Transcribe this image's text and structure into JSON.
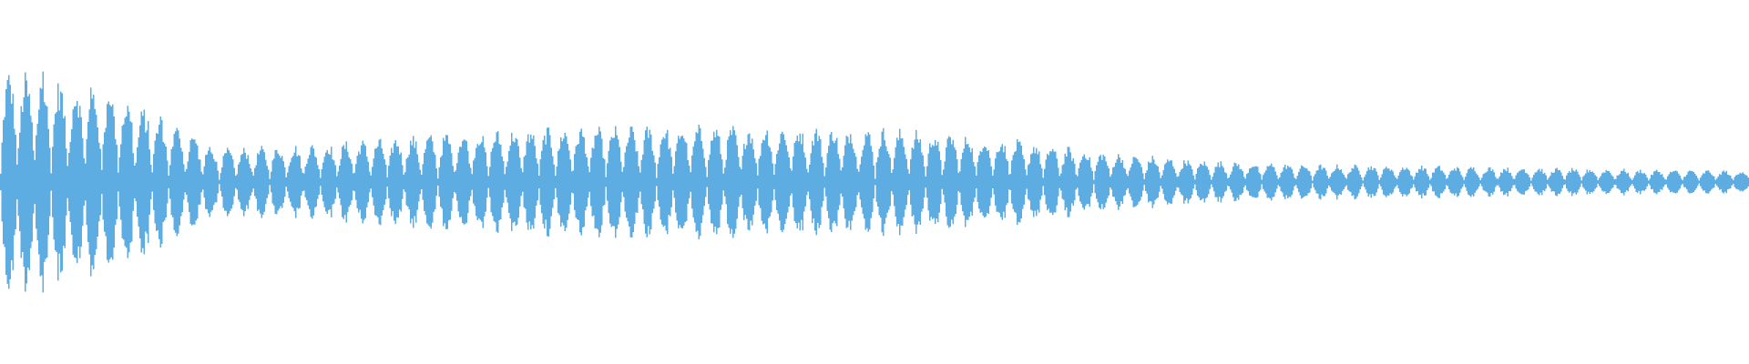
{
  "chart_data": {
    "type": "area",
    "title": "",
    "xlabel": "",
    "ylabel": "",
    "ylim": [
      -1,
      1
    ],
    "grid": false,
    "legend": "none",
    "pulse_count": 104,
    "envelope": [
      0.58,
      0.47,
      0.17,
      0.2,
      0.25,
      0.28,
      0.29,
      0.29,
      0.28,
      0.24,
      0.16,
      0.11,
      0.09,
      0.085,
      0.075,
      0.065,
      0.06
    ],
    "series": [
      {
        "color": "#5dade2"
      }
    ]
  }
}
